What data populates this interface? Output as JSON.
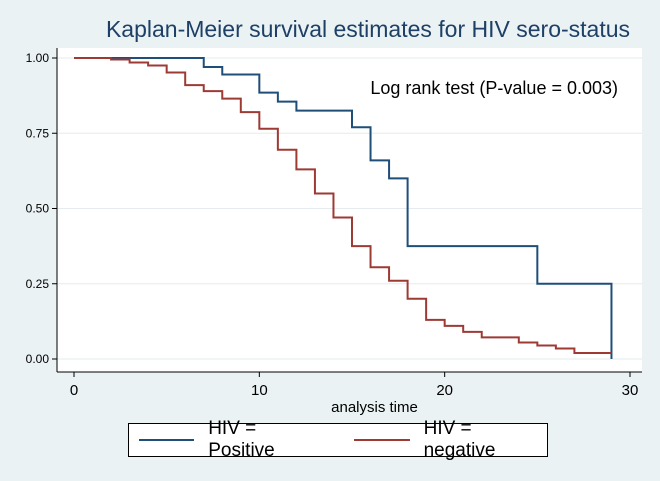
{
  "chart_data": {
    "type": "line",
    "title": "Kaplan-Meier survival estimates for HIV sero-status",
    "xlabel": "analysis time",
    "ylabel": "",
    "xlim": [
      0,
      30
    ],
    "ylim": [
      0,
      1
    ],
    "x_ticks": [
      0,
      10,
      20,
      30
    ],
    "x_tick_labels": [
      "0",
      "10",
      "20",
      "30"
    ],
    "y_ticks": [
      0,
      0.25,
      0.5,
      0.75,
      1
    ],
    "y_tick_labels": [
      "0.00",
      "0.25",
      "0.50",
      "0.75",
      "1.00"
    ],
    "grid": "horizontal",
    "annotation": "Log rank test (P-value = 0.003)",
    "legend_position": "bottom",
    "series": [
      {
        "name": "HIV = Positive",
        "color": "#1f4e79",
        "step": true,
        "points": [
          [
            0,
            1.0
          ],
          [
            7,
            0.97
          ],
          [
            8,
            0.945
          ],
          [
            10,
            0.885
          ],
          [
            11,
            0.855
          ],
          [
            12,
            0.825
          ],
          [
            15,
            0.77
          ],
          [
            16,
            0.66
          ],
          [
            17,
            0.6
          ],
          [
            18,
            0.375
          ],
          [
            25,
            0.25
          ],
          [
            29,
            0.0
          ]
        ]
      },
      {
        "name": "HIV = negative",
        "color": "#9e3a34",
        "step": true,
        "points": [
          [
            0,
            1.0
          ],
          [
            2,
            0.995
          ],
          [
            3,
            0.985
          ],
          [
            4,
            0.975
          ],
          [
            5,
            0.952
          ],
          [
            6,
            0.91
          ],
          [
            7,
            0.89
          ],
          [
            8,
            0.865
          ],
          [
            9,
            0.82
          ],
          [
            10,
            0.765
          ],
          [
            11,
            0.695
          ],
          [
            12,
            0.63
          ],
          [
            13,
            0.55
          ],
          [
            14,
            0.47
          ],
          [
            15,
            0.375
          ],
          [
            16,
            0.305
          ],
          [
            17,
            0.26
          ],
          [
            18,
            0.2
          ],
          [
            19,
            0.13
          ],
          [
            20,
            0.11
          ],
          [
            21,
            0.09
          ],
          [
            22,
            0.072
          ],
          [
            24,
            0.055
          ],
          [
            25,
            0.045
          ],
          [
            26,
            0.035
          ],
          [
            27,
            0.02
          ],
          [
            29,
            0.02
          ]
        ]
      }
    ]
  }
}
